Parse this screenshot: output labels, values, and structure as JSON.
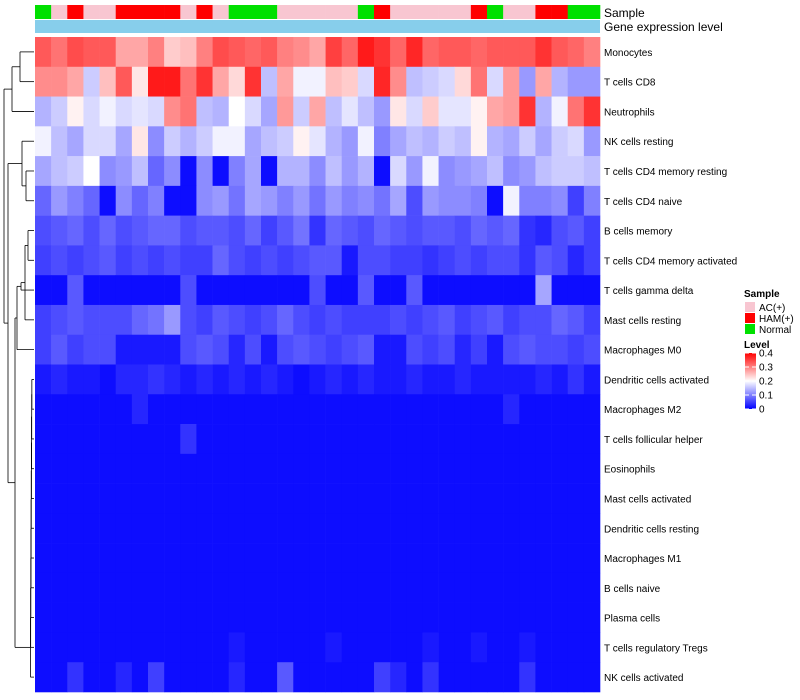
{
  "chart_data": {
    "type": "heatmap",
    "title": "",
    "annotation_labels": [
      "Sample",
      "Gene expression level"
    ],
    "legend_sample": {
      "title": "Sample",
      "entries": [
        {
          "label": "AC(+)",
          "color": "#f8c6d1"
        },
        {
          "label": "HAM(+)",
          "color": "#ff0000"
        },
        {
          "label": "Normal",
          "color": "#00e000"
        }
      ]
    },
    "legend_level": {
      "title": "Level",
      "ticks": [
        "0.4",
        "0.3",
        "0.2",
        "0.1",
        "0"
      ],
      "tick_values": [
        0.4,
        0.3,
        0.2,
        0.1,
        0
      ],
      "range": [
        0,
        0.4
      ],
      "colors": {
        "low": "#0000ff",
        "mid": "#ffffff",
        "high": "#ff0000"
      },
      "mid_value": 0.2
    },
    "gene_expression_color": "#87ceeb",
    "sample_groups": [
      "N",
      "A",
      "H",
      "A",
      "A",
      "H",
      "H",
      "H",
      "H",
      "A",
      "H",
      "A",
      "N",
      "N",
      "N",
      "A",
      "A",
      "A",
      "A",
      "A",
      "N",
      "H",
      "A",
      "A",
      "A",
      "A",
      "A",
      "H",
      "N",
      "A",
      "A",
      "H",
      "H",
      "N",
      "N"
    ],
    "rows": [
      {
        "name": "Monocytes",
        "values": [
          0.33,
          0.31,
          0.34,
          0.33,
          0.33,
          0.27,
          0.27,
          0.3,
          0.24,
          0.25,
          0.3,
          0.34,
          0.33,
          0.32,
          0.33,
          0.3,
          0.29,
          0.27,
          0.35,
          0.32,
          0.38,
          0.36,
          0.32,
          0.37,
          0.32,
          0.33,
          0.33,
          0.32,
          0.33,
          0.33,
          0.33,
          0.36,
          0.33,
          0.32,
          0.3
        ]
      },
      {
        "name": "T cells CD8",
        "values": [
          0.29,
          0.29,
          0.27,
          0.16,
          0.25,
          0.33,
          0.22,
          0.38,
          0.38,
          0.31,
          0.36,
          0.27,
          0.23,
          0.36,
          0.15,
          0.27,
          0.19,
          0.19,
          0.25,
          0.24,
          0.17,
          0.37,
          0.29,
          0.15,
          0.16,
          0.17,
          0.23,
          0.31,
          0.17,
          0.28,
          0.12,
          0.27,
          0.14,
          0.12,
          0.12
        ]
      },
      {
        "name": "Neutrophils",
        "values": [
          0.14,
          0.16,
          0.21,
          0.17,
          0.19,
          0.17,
          0.18,
          0.17,
          0.29,
          0.31,
          0.15,
          0.14,
          0.2,
          0.17,
          0.13,
          0.28,
          0.16,
          0.27,
          0.15,
          0.18,
          0.15,
          0.12,
          0.22,
          0.17,
          0.24,
          0.18,
          0.18,
          0.21,
          0.27,
          0.28,
          0.36,
          0.14,
          0.19,
          0.31,
          0.36
        ]
      },
      {
        "name": "NK cells resting",
        "values": [
          0.19,
          0.15,
          0.13,
          0.17,
          0.17,
          0.13,
          0.22,
          0.11,
          0.16,
          0.14,
          0.16,
          0.19,
          0.19,
          0.13,
          0.15,
          0.16,
          0.21,
          0.18,
          0.14,
          0.12,
          0.19,
          0.1,
          0.13,
          0.15,
          0.14,
          0.16,
          0.15,
          0.21,
          0.14,
          0.13,
          0.16,
          0.13,
          0.16,
          0.17,
          0.12
        ]
      },
      {
        "name": "T cells CD4 memory resting",
        "values": [
          0.13,
          0.15,
          0.16,
          0.2,
          0.11,
          0.12,
          0.15,
          0.08,
          0.11,
          0.01,
          0.11,
          0.01,
          0.1,
          0.13,
          0.01,
          0.14,
          0.14,
          0.11,
          0.15,
          0.12,
          0.14,
          0.01,
          0.17,
          0.12,
          0.19,
          0.11,
          0.12,
          0.13,
          0.15,
          0.11,
          0.12,
          0.15,
          0.16,
          0.16,
          0.15
        ]
      },
      {
        "name": "T cells CD4 naive",
        "values": [
          0.08,
          0.12,
          0.1,
          0.08,
          0.01,
          0.11,
          0.08,
          0.1,
          0.01,
          0.01,
          0.11,
          0.12,
          0.09,
          0.13,
          0.12,
          0.1,
          0.12,
          0.09,
          0.12,
          0.1,
          0.11,
          0.09,
          0.13,
          0.06,
          0.12,
          0.11,
          0.11,
          0.1,
          0.01,
          0.19,
          0.1,
          0.1,
          0.11,
          0.05,
          0.1
        ]
      },
      {
        "name": "B cells memory",
        "values": [
          0.06,
          0.07,
          0.08,
          0.06,
          0.08,
          0.06,
          0.07,
          0.08,
          0.08,
          0.06,
          0.07,
          0.07,
          0.06,
          0.08,
          0.05,
          0.07,
          0.09,
          0.04,
          0.08,
          0.07,
          0.06,
          0.08,
          0.07,
          0.06,
          0.07,
          0.07,
          0.06,
          0.08,
          0.07,
          0.08,
          0.04,
          0.03,
          0.06,
          0.07,
          0.05
        ]
      },
      {
        "name": "T cells CD4 memory activated",
        "values": [
          0.05,
          0.06,
          0.05,
          0.06,
          0.07,
          0.05,
          0.06,
          0.05,
          0.06,
          0.05,
          0.05,
          0.08,
          0.06,
          0.05,
          0.06,
          0.05,
          0.06,
          0.07,
          0.07,
          0.02,
          0.06,
          0.06,
          0.05,
          0.05,
          0.04,
          0.05,
          0.06,
          0.05,
          0.06,
          0.06,
          0.04,
          0.07,
          0.06,
          0.03,
          0.05
        ]
      },
      {
        "name": "T cells gamma delta",
        "values": [
          0.01,
          0.01,
          0.07,
          0.01,
          0.01,
          0.01,
          0.01,
          0.01,
          0.01,
          0.06,
          0.01,
          0.01,
          0.01,
          0.01,
          0.01,
          0.01,
          0.01,
          0.06,
          0.01,
          0.01,
          0.07,
          0.01,
          0.01,
          0.07,
          0.01,
          0.01,
          0.01,
          0.01,
          0.01,
          0.01,
          0.01,
          0.13,
          0.01,
          0.01,
          0.01
        ]
      },
      {
        "name": "Mast cells resting",
        "values": [
          0.05,
          0.06,
          0.07,
          0.06,
          0.06,
          0.06,
          0.08,
          0.09,
          0.12,
          0.06,
          0.05,
          0.07,
          0.06,
          0.05,
          0.06,
          0.08,
          0.06,
          0.05,
          0.06,
          0.05,
          0.05,
          0.05,
          0.06,
          0.05,
          0.06,
          0.07,
          0.05,
          0.06,
          0.07,
          0.05,
          0.06,
          0.06,
          0.08,
          0.07,
          0.05
        ]
      },
      {
        "name": "Macrophages M0",
        "values": [
          0.05,
          0.07,
          0.05,
          0.06,
          0.06,
          0.02,
          0.02,
          0.02,
          0.02,
          0.06,
          0.07,
          0.06,
          0.03,
          0.06,
          0.02,
          0.06,
          0.07,
          0.06,
          0.05,
          0.06,
          0.07,
          0.02,
          0.02,
          0.06,
          0.05,
          0.06,
          0.03,
          0.05,
          0.02,
          0.06,
          0.07,
          0.06,
          0.06,
          0.05,
          0.06
        ]
      },
      {
        "name": "Dendritic cells activated",
        "values": [
          0.02,
          0.03,
          0.02,
          0.02,
          0.01,
          0.03,
          0.03,
          0.04,
          0.03,
          0.02,
          0.03,
          0.02,
          0.03,
          0.02,
          0.03,
          0.02,
          0.01,
          0.02,
          0.03,
          0.02,
          0.03,
          0.02,
          0.02,
          0.03,
          0.02,
          0.02,
          0.03,
          0.02,
          0.02,
          0.02,
          0.02,
          0.03,
          0.02,
          0.04,
          0.02
        ]
      },
      {
        "name": "Macrophages M2",
        "values": [
          0.01,
          0.01,
          0.01,
          0.01,
          0.01,
          0.01,
          0.03,
          0.01,
          0.01,
          0.01,
          0.01,
          0.01,
          0.01,
          0.01,
          0.01,
          0.01,
          0.01,
          0.01,
          0.01,
          0.01,
          0.01,
          0.01,
          0.01,
          0.01,
          0.01,
          0.01,
          0.01,
          0.01,
          0.01,
          0.03,
          0.01,
          0.01,
          0.01,
          0.01,
          0.01
        ]
      },
      {
        "name": "T cells follicular helper",
        "values": [
          0.01,
          0.01,
          0.01,
          0.01,
          0.01,
          0.01,
          0.01,
          0.01,
          0.01,
          0.04,
          0.01,
          0.01,
          0.01,
          0.01,
          0.01,
          0.01,
          0.01,
          0.01,
          0.01,
          0.01,
          0.01,
          0.01,
          0.01,
          0.01,
          0.01,
          0.01,
          0.01,
          0.01,
          0.01,
          0.01,
          0.01,
          0.01,
          0.01,
          0.01,
          0.01
        ]
      },
      {
        "name": "Eosinophils",
        "values": [
          0.01,
          0.01,
          0.01,
          0.01,
          0.01,
          0.01,
          0.01,
          0.01,
          0.01,
          0.01,
          0.01,
          0.01,
          0.01,
          0.01,
          0.01,
          0.01,
          0.01,
          0.01,
          0.01,
          0.01,
          0.01,
          0.01,
          0.01,
          0.01,
          0.01,
          0.01,
          0.01,
          0.01,
          0.01,
          0.01,
          0.01,
          0.01,
          0.01,
          0.01,
          0.01
        ]
      },
      {
        "name": "Mast cells activated",
        "values": [
          0.01,
          0.01,
          0.01,
          0.01,
          0.01,
          0.01,
          0.01,
          0.01,
          0.01,
          0.01,
          0.01,
          0.01,
          0.01,
          0.01,
          0.01,
          0.01,
          0.01,
          0.01,
          0.01,
          0.01,
          0.01,
          0.01,
          0.01,
          0.01,
          0.01,
          0.01,
          0.01,
          0.01,
          0.01,
          0.01,
          0.01,
          0.01,
          0.01,
          0.01,
          0.01
        ]
      },
      {
        "name": "Dendritic cells resting",
        "values": [
          0.01,
          0.01,
          0.01,
          0.01,
          0.01,
          0.01,
          0.01,
          0.01,
          0.01,
          0.01,
          0.01,
          0.01,
          0.01,
          0.01,
          0.01,
          0.01,
          0.01,
          0.01,
          0.01,
          0.01,
          0.01,
          0.01,
          0.01,
          0.01,
          0.01,
          0.01,
          0.01,
          0.01,
          0.01,
          0.01,
          0.01,
          0.01,
          0.01,
          0.01,
          0.01
        ]
      },
      {
        "name": "Macrophages M1",
        "values": [
          0.01,
          0.01,
          0.01,
          0.01,
          0.01,
          0.01,
          0.01,
          0.01,
          0.01,
          0.01,
          0.01,
          0.01,
          0.01,
          0.01,
          0.01,
          0.01,
          0.01,
          0.01,
          0.01,
          0.01,
          0.01,
          0.01,
          0.01,
          0.01,
          0.01,
          0.01,
          0.01,
          0.01,
          0.01,
          0.01,
          0.01,
          0.01,
          0.01,
          0.01,
          0.01
        ]
      },
      {
        "name": "B cells naive",
        "values": [
          0.01,
          0.01,
          0.01,
          0.01,
          0.01,
          0.01,
          0.01,
          0.01,
          0.01,
          0.01,
          0.01,
          0.01,
          0.01,
          0.01,
          0.01,
          0.01,
          0.01,
          0.01,
          0.01,
          0.01,
          0.01,
          0.01,
          0.01,
          0.01,
          0.01,
          0.01,
          0.01,
          0.01,
          0.01,
          0.01,
          0.01,
          0.01,
          0.01,
          0.01,
          0.01
        ]
      },
      {
        "name": "Plasma cells",
        "values": [
          0.01,
          0.01,
          0.01,
          0.01,
          0.01,
          0.01,
          0.01,
          0.01,
          0.01,
          0.01,
          0.01,
          0.01,
          0.01,
          0.01,
          0.01,
          0.01,
          0.01,
          0.01,
          0.01,
          0.01,
          0.01,
          0.01,
          0.01,
          0.01,
          0.01,
          0.01,
          0.01,
          0.01,
          0.01,
          0.01,
          0.01,
          0.01,
          0.01,
          0.01,
          0.01
        ]
      },
      {
        "name": "T cells regulatory  Tregs",
        "values": [
          0.01,
          0.01,
          0.01,
          0.01,
          0.01,
          0.01,
          0.01,
          0.01,
          0.01,
          0.01,
          0.01,
          0.01,
          0.02,
          0.01,
          0.01,
          0.01,
          0.01,
          0.01,
          0.02,
          0.01,
          0.01,
          0.01,
          0.01,
          0.01,
          0.02,
          0.01,
          0.01,
          0.02,
          0.01,
          0.01,
          0.02,
          0.01,
          0.01,
          0.01,
          0.01
        ]
      },
      {
        "name": "NK cells activated",
        "values": [
          0.01,
          0.01,
          0.04,
          0.01,
          0.01,
          0.03,
          0.01,
          0.05,
          0.01,
          0.01,
          0.01,
          0.01,
          0.03,
          0.01,
          0.01,
          0.07,
          0.01,
          0.01,
          0.01,
          0.01,
          0.01,
          0.05,
          0.03,
          0.01,
          0.04,
          0.01,
          0.01,
          0.01,
          0.01,
          0.01,
          0.04,
          0.01,
          0.01,
          0.01,
          0.01
        ]
      }
    ]
  }
}
